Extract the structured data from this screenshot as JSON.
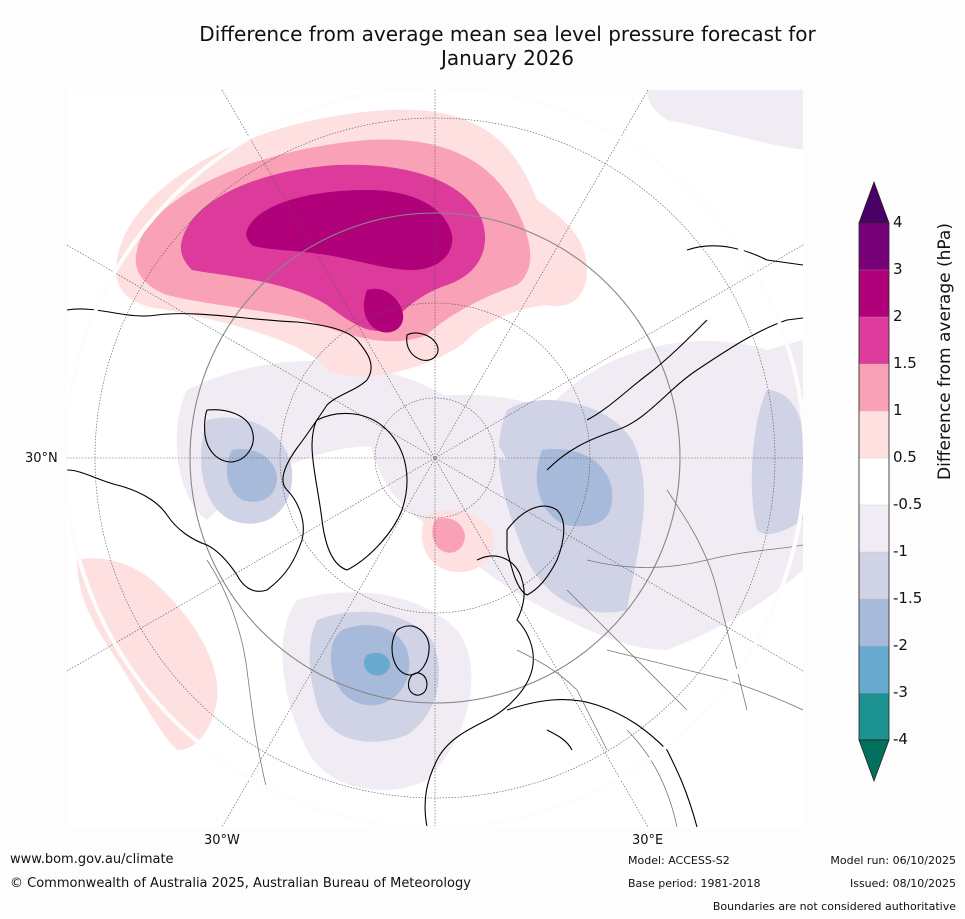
{
  "title": {
    "line1": "Difference from average mean sea level pressure forecast for",
    "line2": "January 2026"
  },
  "map": {
    "projection": "north-polar-stereographic",
    "labels": {
      "lat30": "30°N",
      "lon30w": "30°W",
      "lon30e": "30°E"
    },
    "anomaly_regions": [
      {
        "name": "north-pacific-high",
        "max_hpa": 3
      },
      {
        "name": "northwest-atlantic-low",
        "min_hpa": -2
      },
      {
        "name": "greenland-sea-high",
        "max_hpa": 1.5
      },
      {
        "name": "siberia-low",
        "min_hpa": -1.5
      },
      {
        "name": "hudson-bay-low",
        "min_hpa": -1.5
      }
    ]
  },
  "colorbar": {
    "axis_label": "Difference from average (hPa)",
    "ticks": [
      "4",
      "3",
      "2",
      "1.5",
      "1",
      "0.5",
      "-0.5",
      "-1",
      "-1.5",
      "-2",
      "-3",
      "-4"
    ],
    "colors": [
      "#780078",
      "#b0007a",
      "#dc3b9c",
      "#f9a1b6",
      "#fde0df",
      "#ffffff",
      "#f1ecf3",
      "#d0d2e5",
      "#a7bad9",
      "#67a9cf",
      "#1d9293"
    ],
    "extend_top_color": "#4b0068",
    "extend_bottom_color": "#02705d"
  },
  "footer": {
    "url": "www.bom.gov.au/climate",
    "copyright": "© Commonwealth of Australia 2025, Australian Bureau of Meteorology",
    "model": "Model: ACCESS-S2",
    "base_period": "Base period: 1981-2018",
    "model_run": "Model run: 06/10/2025",
    "issued": "Issued: 08/10/2025",
    "disclaimer": "Boundaries are not considered authoritative"
  }
}
